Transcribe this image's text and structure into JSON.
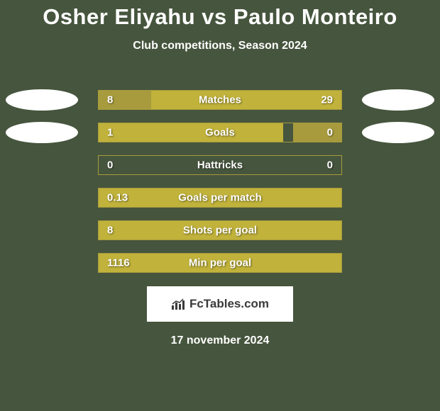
{
  "title": {
    "player1": "Osher Eliyahu",
    "vs": "vs",
    "player2": "Paulo Monteiro"
  },
  "subtitle": "Club competitions, Season 2024",
  "colors": {
    "background": "#46553d",
    "bar_fill": "#a89b3e",
    "bar_highlight": "#c0b23a",
    "text": "#ffffff",
    "oval": "#ffffff",
    "logo_bg": "#ffffff",
    "logo_text": "#3a3a3a"
  },
  "stats": [
    {
      "label": "Matches",
      "left_value": "8",
      "right_value": "29",
      "left_pct": 21.6,
      "right_pct": 78.4,
      "show_ovals": true,
      "right_highlight": true
    },
    {
      "label": "Goals",
      "left_value": "1",
      "right_value": "0",
      "left_pct": 76.0,
      "right_pct": 20.0,
      "show_ovals": true,
      "left_highlight": true
    },
    {
      "label": "Hattricks",
      "left_value": "0",
      "right_value": "0",
      "left_pct": 0,
      "right_pct": 0,
      "show_ovals": false
    },
    {
      "label": "Goals per match",
      "left_value": "0.13",
      "right_value": "",
      "left_pct": 100,
      "right_pct": 0,
      "show_ovals": false,
      "left_highlight": true
    },
    {
      "label": "Shots per goal",
      "left_value": "8",
      "right_value": "",
      "left_pct": 100,
      "right_pct": 0,
      "show_ovals": false,
      "left_highlight": true
    },
    {
      "label": "Min per goal",
      "left_value": "1116",
      "right_value": "",
      "left_pct": 100,
      "right_pct": 0,
      "show_ovals": false,
      "left_highlight": true
    }
  ],
  "logo_text": "FcTables.com",
  "date": "17 november 2024"
}
